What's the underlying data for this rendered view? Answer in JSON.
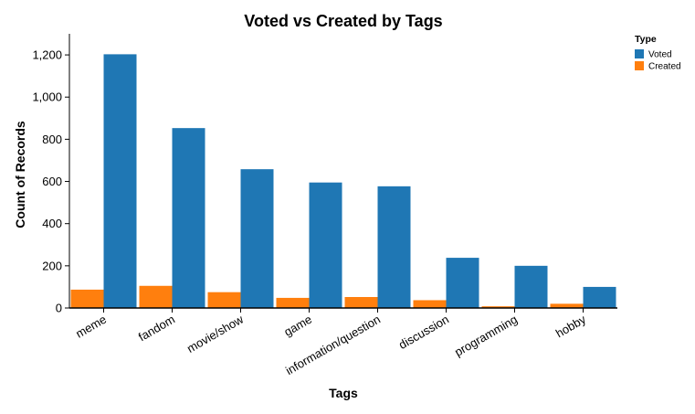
{
  "chart_data": {
    "type": "bar",
    "title": "Voted vs Created by Tags",
    "xlabel": "Tags",
    "ylabel": "Count of Records",
    "ylim": [
      0,
      1300
    ],
    "yticks": [
      0,
      200,
      400,
      600,
      800,
      1000,
      1200
    ],
    "ytick_labels": [
      "0",
      "200",
      "400",
      "600",
      "800",
      "1,000",
      "1,200"
    ],
    "categories": [
      "meme",
      "fandom",
      "movie/show",
      "game",
      "information/question",
      "discussion",
      "programming",
      "hobby"
    ],
    "series": [
      {
        "name": "Created",
        "color": "#ff7f0e",
        "values": [
          87,
          105,
          75,
          48,
          52,
          37,
          8,
          20
        ]
      },
      {
        "name": "Voted",
        "color": "#1f77b4",
        "values": [
          1203,
          853,
          658,
          595,
          577,
          238,
          200,
          100
        ]
      }
    ],
    "legend": {
      "title": "Type",
      "placement": "top-right",
      "entries": [
        {
          "label": "Voted",
          "color": "#1f77b4"
        },
        {
          "label": "Created",
          "color": "#ff7f0e"
        }
      ]
    },
    "grid": false
  }
}
